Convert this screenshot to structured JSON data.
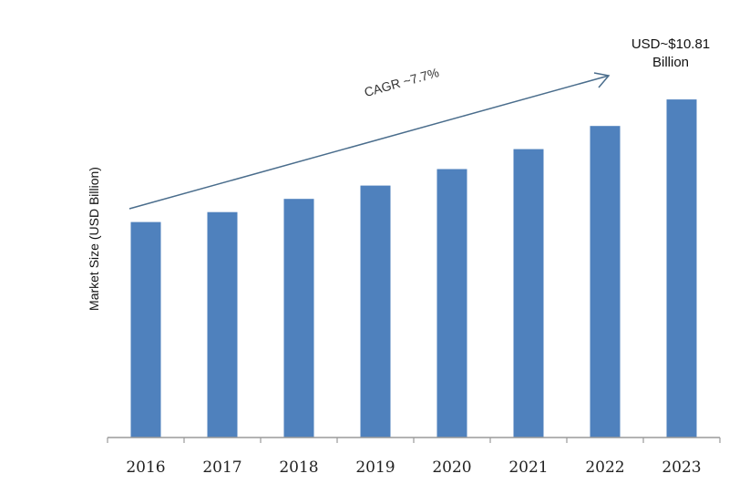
{
  "chart_data": {
    "type": "bar",
    "categories": [
      "2016",
      "2017",
      "2018",
      "2019",
      "2020",
      "2021",
      "2022",
      "2023"
    ],
    "values": [
      6.5,
      6.8,
      7.2,
      7.6,
      8.1,
      8.7,
      9.4,
      10.2
    ],
    "ylabel": "Market Size (USD Billion)",
    "xlabel": "",
    "ylim": [
      0,
      11
    ],
    "bar_color": "#4f81bd",
    "arrow_color": "#4a6d8c",
    "cagr_label": "CAGR ~7.7%",
    "final_annotation": [
      "USD~$10.81",
      "Billion"
    ],
    "grid": false,
    "legend": "none"
  }
}
